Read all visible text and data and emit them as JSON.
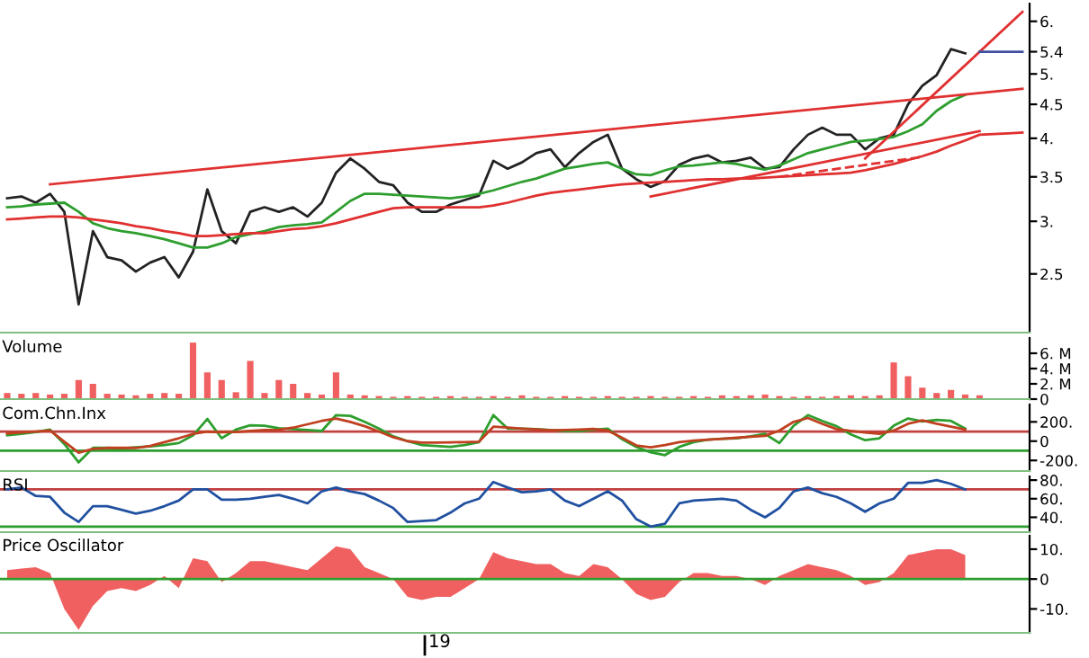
{
  "chart_data": [
    {
      "type": "line",
      "log": true,
      "ylim": [
        2.04,
        6.38
      ],
      "tick_labels": "y",
      "categories": [
        null,
        null,
        null,
        null,
        null,
        null,
        null,
        null,
        null,
        null,
        null,
        null,
        null,
        null,
        null,
        null,
        null,
        null,
        null,
        null,
        null,
        null,
        null,
        null,
        null,
        null,
        null,
        null,
        null,
        null,
        null,
        null,
        null,
        null,
        null,
        null,
        null,
        null,
        null,
        null,
        null,
        null,
        null,
        null,
        null,
        null,
        null,
        null,
        null,
        null,
        null,
        null,
        null,
        null,
        null,
        null,
        null,
        null,
        null,
        null,
        null,
        null,
        null,
        null,
        null,
        null,
        null,
        null,
        null,
        null,
        null,
        null
      ],
      "yticks": [
        {
          "value": 2.5,
          "label": "2.5"
        },
        {
          "value": 3,
          "label": "3."
        },
        {
          "value": 3.5,
          "label": "3.5"
        },
        {
          "value": 4,
          "label": "4."
        },
        {
          "value": 4.5,
          "label": "4.5"
        },
        {
          "value": 5,
          "label": "5."
        },
        {
          "value": 5.4,
          "label": "5.4"
        },
        {
          "value": 6,
          "label": "6."
        }
      ],
      "series": [
        {
          "color": "#222222",
          "values": [
            3.25,
            3.27,
            3.2,
            3.3,
            3.1,
            2.25,
            2.9,
            2.65,
            2.62,
            2.52,
            2.6,
            2.65,
            2.47,
            2.7,
            3.35,
            2.9,
            2.78,
            3.1,
            3.15,
            3.1,
            3.15,
            3.05,
            3.2,
            3.55,
            3.73,
            3.6,
            3.44,
            3.4,
            3.2,
            3.1,
            3.1,
            3.18,
            3.23,
            3.28,
            3.7,
            3.6,
            3.68,
            3.8,
            3.85,
            3.62,
            3.8,
            3.95,
            4.05,
            3.6,
            3.47,
            3.38,
            3.45,
            3.65,
            3.73,
            3.77,
            3.68,
            3.7,
            3.74,
            3.6,
            3.62,
            3.85,
            4.05,
            4.15,
            4.05,
            4.05,
            3.85,
            4.0,
            4.05,
            4.5,
            4.8,
            4.98,
            5.45,
            5.37,
            null,
            null,
            null,
            null
          ]
        },
        {
          "color": "#2e9e2e",
          "values": [
            3.15,
            3.16,
            3.18,
            3.19,
            3.2,
            3.1,
            2.98,
            2.93,
            2.9,
            2.88,
            2.85,
            2.82,
            2.78,
            2.74,
            2.74,
            2.78,
            2.84,
            2.87,
            2.9,
            2.94,
            2.96,
            2.97,
            2.99,
            3.1,
            3.22,
            3.3,
            3.3,
            3.29,
            3.28,
            3.27,
            3.26,
            3.25,
            3.27,
            3.3,
            3.34,
            3.39,
            3.44,
            3.48,
            3.54,
            3.6,
            3.63,
            3.66,
            3.68,
            3.6,
            3.53,
            3.52,
            3.58,
            3.63,
            3.64,
            3.66,
            3.68,
            3.66,
            3.62,
            3.59,
            3.64,
            3.72,
            3.8,
            3.85,
            3.9,
            3.95,
            3.97,
            3.99,
            4.02,
            4.1,
            4.2,
            4.4,
            4.55,
            4.65,
            null,
            null,
            null,
            null
          ]
        },
        {
          "color": "#e03030",
          "values": [
            3.02,
            3.03,
            3.04,
            3.05,
            3.05,
            3.04,
            3.02,
            3.0,
            2.98,
            2.95,
            2.93,
            2.9,
            2.88,
            2.85,
            2.85,
            2.86,
            2.87,
            2.88,
            2.88,
            2.9,
            2.92,
            2.93,
            2.95,
            2.98,
            3.02,
            3.06,
            3.1,
            3.14,
            3.15,
            3.15,
            3.15,
            3.15,
            3.15,
            3.15,
            3.17,
            3.2,
            3.24,
            3.28,
            3.31,
            3.33,
            3.35,
            3.37,
            3.39,
            3.41,
            3.42,
            3.43,
            3.44,
            3.45,
            3.46,
            3.47,
            3.47,
            3.48,
            3.48,
            3.49,
            3.5,
            3.51,
            3.52,
            3.53,
            3.54,
            3.55,
            3.58,
            3.62,
            3.66,
            3.71,
            3.76,
            3.82,
            3.9,
            3.97,
            4.05,
            4.06,
            4.07,
            4.08
          ]
        },
        {
          "color": "#e03030",
          "values": [
            null,
            null,
            null,
            3.41,
            null,
            null,
            null,
            null,
            null,
            null,
            null,
            null,
            null,
            null,
            null,
            null,
            null,
            null,
            null,
            null,
            null,
            null,
            null,
            null,
            null,
            null,
            null,
            null,
            null,
            null,
            null,
            null,
            null,
            null,
            null,
            null,
            null,
            null,
            null,
            null,
            null,
            null,
            null,
            null,
            null,
            null,
            null,
            null,
            null,
            null,
            null,
            null,
            null,
            null,
            null,
            null,
            null,
            null,
            null,
            null,
            null,
            null,
            null,
            null,
            null,
            null,
            null,
            null,
            null,
            null,
            null,
            4.75
          ]
        },
        {
          "color": "#e03030",
          "values": [
            null,
            null,
            null,
            null,
            null,
            null,
            null,
            null,
            null,
            null,
            null,
            null,
            null,
            null,
            null,
            null,
            null,
            null,
            null,
            null,
            null,
            null,
            null,
            null,
            null,
            null,
            null,
            null,
            null,
            null,
            null,
            null,
            null,
            null,
            null,
            null,
            null,
            null,
            null,
            null,
            null,
            null,
            null,
            null,
            null,
            3.27,
            null,
            null,
            null,
            null,
            null,
            null,
            null,
            null,
            null,
            null,
            null,
            null,
            null,
            null,
            null,
            null,
            null,
            null,
            null,
            null,
            null,
            null,
            4.1,
            null,
            null,
            null
          ]
        },
        {
          "color": "#e03030",
          "values": [
            null,
            null,
            null,
            null,
            null,
            null,
            null,
            null,
            null,
            null,
            null,
            null,
            null,
            null,
            null,
            null,
            null,
            null,
            null,
            null,
            null,
            null,
            null,
            null,
            null,
            null,
            null,
            null,
            null,
            null,
            null,
            null,
            null,
            null,
            null,
            null,
            null,
            null,
            null,
            null,
            null,
            null,
            null,
            null,
            null,
            null,
            null,
            null,
            null,
            null,
            null,
            null,
            null,
            null,
            null,
            null,
            null,
            null,
            null,
            null,
            3.73,
            null,
            null,
            null,
            null,
            null,
            null,
            null,
            null,
            null,
            null,
            6.2
          ]
        },
        {
          "color": "#e03030",
          "line_style": "dashed",
          "values": [
            null,
            null,
            null,
            null,
            null,
            null,
            null,
            null,
            null,
            null,
            null,
            null,
            null,
            null,
            null,
            null,
            null,
            null,
            null,
            null,
            null,
            null,
            null,
            null,
            null,
            null,
            null,
            null,
            null,
            null,
            null,
            null,
            null,
            null,
            null,
            null,
            null,
            null,
            null,
            null,
            null,
            null,
            null,
            null,
            null,
            null,
            null,
            null,
            null,
            null,
            null,
            null,
            null,
            null,
            3.5,
            null,
            null,
            null,
            null,
            null,
            null,
            null,
            null,
            null,
            3.75,
            null,
            null,
            null,
            null,
            null,
            null,
            null
          ]
        },
        {
          "color": "#4050a0",
          "values": [
            null,
            null,
            null,
            null,
            null,
            null,
            null,
            null,
            null,
            null,
            null,
            null,
            null,
            null,
            null,
            null,
            null,
            null,
            null,
            null,
            null,
            null,
            null,
            null,
            null,
            null,
            null,
            null,
            null,
            null,
            null,
            null,
            null,
            null,
            null,
            null,
            null,
            null,
            null,
            null,
            null,
            null,
            null,
            null,
            null,
            null,
            null,
            null,
            null,
            null,
            null,
            null,
            null,
            null,
            null,
            null,
            null,
            null,
            null,
            null,
            null,
            null,
            null,
            null,
            null,
            null,
            null,
            null,
            5.4,
            null,
            null,
            5.4
          ]
        }
      ]
    },
    {
      "type": "bar",
      "title": "Volume",
      "ylim": [
        0,
        8
      ],
      "tick_labels": "y",
      "categories": [
        null,
        null,
        null,
        null,
        null,
        null,
        null,
        null,
        null,
        null,
        null,
        null,
        null,
        null,
        null,
        null,
        null,
        null,
        null,
        null,
        null,
        null,
        null,
        null,
        null,
        null,
        null,
        null,
        null,
        null,
        null,
        null,
        null,
        null,
        null,
        null,
        null,
        null,
        null,
        null,
        null,
        null,
        null,
        null,
        null,
        null,
        null,
        null,
        null,
        null,
        null,
        null,
        null,
        null,
        null,
        null,
        null,
        null,
        null,
        null,
        null,
        null,
        null,
        null,
        null,
        null,
        null,
        null,
        null,
        null,
        null,
        null
      ],
      "yticks": [
        0,
        {
          "value": 2,
          "label": "2. M"
        },
        {
          "value": 4,
          "label": "4. M"
        },
        {
          "value": 6,
          "label": "6. M"
        }
      ],
      "series": [
        {
          "color": "#f06060",
          "values": [
            0.8,
            0.7,
            0.8,
            0.6,
            0.7,
            2.5,
            2.0,
            0.7,
            0.6,
            0.5,
            0.7,
            0.8,
            0.7,
            7.4,
            3.5,
            2.5,
            0.9,
            5.0,
            0.8,
            2.5,
            2.0,
            0.8,
            0.6,
            3.5,
            0.6,
            0.5,
            0.4,
            0.3,
            0.4,
            0.3,
            0.3,
            0.4,
            0.3,
            0.3,
            0.4,
            0.3,
            0.5,
            0.3,
            0.3,
            0.4,
            0.3,
            0.3,
            0.4,
            0.3,
            0.3,
            0.4,
            0.3,
            0.3,
            0.4,
            0.3,
            0.5,
            0.4,
            0.5,
            0.6,
            0.4,
            0.3,
            0.4,
            0.3,
            0.4,
            0.5,
            0.4,
            0.5,
            4.8,
            3.0,
            1.5,
            0.8,
            1.2,
            0.6,
            0.5,
            null,
            null,
            null
          ]
        }
      ]
    },
    {
      "type": "line",
      "title": "Com.Chn.Inx",
      "ylim": [
        -310,
        380
      ],
      "tick_labels": "y",
      "categories": [
        null,
        null,
        null,
        null,
        null,
        null,
        null,
        null,
        null,
        null,
        null,
        null,
        null,
        null,
        null,
        null,
        null,
        null,
        null,
        null,
        null,
        null,
        null,
        null,
        null,
        null,
        null,
        null,
        null,
        null,
        null,
        null,
        null,
        null,
        null,
        null,
        null,
        null,
        null,
        null,
        null,
        null,
        null,
        null,
        null,
        null,
        null,
        null,
        null,
        null,
        null,
        null,
        null,
        null,
        null,
        null,
        null,
        null,
        null,
        null,
        null,
        null,
        null,
        null,
        null,
        null,
        null,
        null,
        null,
        null,
        null,
        null
      ],
      "yticks": [
        {
          "value": -200,
          "label": "-200."
        },
        0,
        {
          "value": 200,
          "label": "200."
        }
      ],
      "ref_lines": [
        {
          "axis": "y",
          "value": 100,
          "color": "#c04040"
        },
        {
          "axis": "y",
          "value": -100,
          "color": "#2e9e2e"
        }
      ],
      "series": [
        {
          "color": "#2e9e2e",
          "values": [
            60,
            75,
            95,
            120,
            -30,
            -220,
            -70,
            -70,
            -75,
            -65,
            -55,
            -40,
            -20,
            60,
            230,
            30,
            120,
            165,
            160,
            135,
            125,
            115,
            105,
            270,
            262,
            200,
            130,
            50,
            0,
            -40,
            -50,
            -60,
            -40,
            -10,
            270,
            130,
            130,
            125,
            115,
            105,
            105,
            118,
            130,
            20,
            -60,
            -115,
            -145,
            -60,
            -10,
            15,
            25,
            30,
            50,
            75,
            -20,
            160,
            270,
            210,
            155,
            70,
            10,
            30,
            160,
            235,
            205,
            220,
            210,
            130,
            null,
            null,
            null,
            null
          ]
        },
        {
          "color": "#c04020",
          "values": [
            80,
            90,
            100,
            110,
            -5,
            -120,
            -80,
            -70,
            -70,
            -70,
            -50,
            -10,
            30,
            75,
            98,
            93,
            95,
            105,
            115,
            118,
            140,
            175,
            210,
            235,
            200,
            155,
            100,
            40,
            0,
            -15,
            -15,
            -12,
            -11,
            -5,
            150,
            140,
            130,
            122,
            112,
            115,
            120,
            126,
            110,
            35,
            -45,
            -65,
            -40,
            -10,
            5,
            15,
            25,
            35,
            45,
            55,
            110,
            200,
            240,
            180,
            125,
            105,
            90,
            75,
            110,
            180,
            215,
            180,
            150,
            120,
            null,
            null,
            null,
            null
          ]
        }
      ]
    },
    {
      "type": "line",
      "title": "RSI",
      "ylim": [
        24,
        84
      ],
      "tick_labels": "y",
      "categories": [
        null,
        null,
        null,
        null,
        null,
        null,
        null,
        null,
        null,
        null,
        null,
        null,
        null,
        null,
        null,
        null,
        null,
        null,
        null,
        null,
        null,
        null,
        null,
        null,
        null,
        null,
        null,
        null,
        null,
        null,
        null,
        null,
        null,
        null,
        null,
        null,
        null,
        null,
        null,
        null,
        null,
        null,
        null,
        null,
        null,
        null,
        null,
        null,
        null,
        null,
        null,
        null,
        null,
        null,
        null,
        null,
        null,
        null,
        null,
        null,
        null,
        null,
        null,
        null,
        null,
        null,
        null,
        null,
        null,
        null,
        null,
        null
      ],
      "yticks": [
        {
          "value": 40,
          "label": "40."
        },
        {
          "value": 60,
          "label": "60."
        },
        {
          "value": 80,
          "label": "80."
        }
      ],
      "ref_lines": [
        {
          "axis": "y",
          "value": 70,
          "color": "#c04040"
        },
        {
          "axis": "y",
          "value": 30,
          "color": "#2e9e2e"
        }
      ],
      "series": [
        {
          "color": "#2050a0",
          "values": [
            70,
            72,
            63,
            62,
            45,
            35,
            52,
            52,
            48,
            44,
            47,
            52,
            58,
            70,
            70,
            59,
            59,
            60,
            62,
            64,
            60,
            55,
            68,
            72,
            68,
            65,
            58,
            50,
            35,
            36,
            37,
            45,
            55,
            60,
            78,
            72,
            67,
            68,
            70,
            58,
            52,
            60,
            68,
            58,
            38,
            30,
            33,
            55,
            58,
            59,
            60,
            58,
            48,
            40,
            50,
            68,
            72,
            66,
            62,
            55,
            46,
            55,
            60,
            77,
            77,
            80,
            76,
            70,
            null,
            null,
            null,
            null
          ]
        }
      ]
    },
    {
      "type": "area",
      "title": "Price Oscillator",
      "ylim": [
        -18,
        14.5
      ],
      "tick_labels": "y",
      "categories": [
        null,
        null,
        null,
        null,
        null,
        null,
        null,
        null,
        null,
        null,
        null,
        null,
        null,
        null,
        null,
        null,
        null,
        null,
        null,
        null,
        null,
        null,
        null,
        null,
        null,
        null,
        null,
        null,
        null,
        null,
        null,
        null,
        null,
        null,
        null,
        null,
        null,
        null,
        null,
        null,
        null,
        null,
        null,
        null,
        null,
        null,
        null,
        null,
        null,
        null,
        null,
        null,
        null,
        null,
        null,
        null,
        null,
        null,
        null,
        null,
        null,
        null,
        null,
        null,
        null,
        null,
        null,
        null,
        null,
        null,
        null,
        null
      ],
      "yticks": [
        {
          "value": -10,
          "label": "-10."
        },
        0,
        {
          "value": 10,
          "label": "10."
        }
      ],
      "ref_lines": [
        {
          "axis": "y",
          "value": 0,
          "color": "#2e9e2e"
        }
      ],
      "annotations": [
        "19"
      ],
      "series": [
        {
          "color": "#f06060",
          "values": [
            3,
            3.5,
            4,
            2,
            -10,
            -17,
            -9,
            -4,
            -3,
            -4,
            -2,
            1,
            -3,
            7,
            6,
            -1,
            2,
            6,
            6,
            5,
            4,
            3,
            7,
            11,
            10,
            4,
            2,
            0,
            -6,
            -7,
            -6,
            -6,
            -3,
            0,
            9,
            7,
            6,
            5,
            5,
            2,
            1,
            5,
            4,
            0,
            -5,
            -7,
            -6,
            -1,
            2,
            2,
            1,
            1,
            0,
            -2,
            1,
            3,
            5,
            4,
            3,
            1,
            -2,
            -1,
            2,
            8,
            9,
            10,
            10,
            8,
            null,
            null,
            null,
            null
          ]
        }
      ]
    }
  ]
}
